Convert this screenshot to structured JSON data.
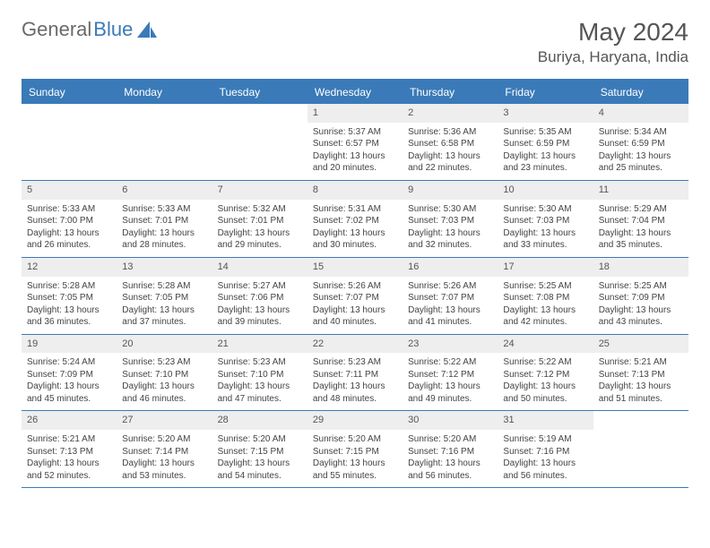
{
  "logo": {
    "text1": "General",
    "text2": "Blue"
  },
  "title": "May 2024",
  "location": "Buriya, Haryana, India",
  "colors": {
    "header_bg": "#3a7ab8",
    "header_text": "#ffffff",
    "daynum_bg": "#eeeeee",
    "text": "#444444",
    "title": "#555555",
    "rule": "#3a7ab8"
  },
  "typography": {
    "title_fontsize": 28,
    "location_fontsize": 17,
    "header_fontsize": 12,
    "cell_fontsize": 10
  },
  "day_names": [
    "Sunday",
    "Monday",
    "Tuesday",
    "Wednesday",
    "Thursday",
    "Friday",
    "Saturday"
  ],
  "weeks": [
    [
      {
        "day": "",
        "sunrise": "",
        "sunset": "",
        "daylight1": "",
        "daylight2": ""
      },
      {
        "day": "",
        "sunrise": "",
        "sunset": "",
        "daylight1": "",
        "daylight2": ""
      },
      {
        "day": "",
        "sunrise": "",
        "sunset": "",
        "daylight1": "",
        "daylight2": ""
      },
      {
        "day": "1",
        "sunrise": "Sunrise: 5:37 AM",
        "sunset": "Sunset: 6:57 PM",
        "daylight1": "Daylight: 13 hours",
        "daylight2": "and 20 minutes."
      },
      {
        "day": "2",
        "sunrise": "Sunrise: 5:36 AM",
        "sunset": "Sunset: 6:58 PM",
        "daylight1": "Daylight: 13 hours",
        "daylight2": "and 22 minutes."
      },
      {
        "day": "3",
        "sunrise": "Sunrise: 5:35 AM",
        "sunset": "Sunset: 6:59 PM",
        "daylight1": "Daylight: 13 hours",
        "daylight2": "and 23 minutes."
      },
      {
        "day": "4",
        "sunrise": "Sunrise: 5:34 AM",
        "sunset": "Sunset: 6:59 PM",
        "daylight1": "Daylight: 13 hours",
        "daylight2": "and 25 minutes."
      }
    ],
    [
      {
        "day": "5",
        "sunrise": "Sunrise: 5:33 AM",
        "sunset": "Sunset: 7:00 PM",
        "daylight1": "Daylight: 13 hours",
        "daylight2": "and 26 minutes."
      },
      {
        "day": "6",
        "sunrise": "Sunrise: 5:33 AM",
        "sunset": "Sunset: 7:01 PM",
        "daylight1": "Daylight: 13 hours",
        "daylight2": "and 28 minutes."
      },
      {
        "day": "7",
        "sunrise": "Sunrise: 5:32 AM",
        "sunset": "Sunset: 7:01 PM",
        "daylight1": "Daylight: 13 hours",
        "daylight2": "and 29 minutes."
      },
      {
        "day": "8",
        "sunrise": "Sunrise: 5:31 AM",
        "sunset": "Sunset: 7:02 PM",
        "daylight1": "Daylight: 13 hours",
        "daylight2": "and 30 minutes."
      },
      {
        "day": "9",
        "sunrise": "Sunrise: 5:30 AM",
        "sunset": "Sunset: 7:03 PM",
        "daylight1": "Daylight: 13 hours",
        "daylight2": "and 32 minutes."
      },
      {
        "day": "10",
        "sunrise": "Sunrise: 5:30 AM",
        "sunset": "Sunset: 7:03 PM",
        "daylight1": "Daylight: 13 hours",
        "daylight2": "and 33 minutes."
      },
      {
        "day": "11",
        "sunrise": "Sunrise: 5:29 AM",
        "sunset": "Sunset: 7:04 PM",
        "daylight1": "Daylight: 13 hours",
        "daylight2": "and 35 minutes."
      }
    ],
    [
      {
        "day": "12",
        "sunrise": "Sunrise: 5:28 AM",
        "sunset": "Sunset: 7:05 PM",
        "daylight1": "Daylight: 13 hours",
        "daylight2": "and 36 minutes."
      },
      {
        "day": "13",
        "sunrise": "Sunrise: 5:28 AM",
        "sunset": "Sunset: 7:05 PM",
        "daylight1": "Daylight: 13 hours",
        "daylight2": "and 37 minutes."
      },
      {
        "day": "14",
        "sunrise": "Sunrise: 5:27 AM",
        "sunset": "Sunset: 7:06 PM",
        "daylight1": "Daylight: 13 hours",
        "daylight2": "and 39 minutes."
      },
      {
        "day": "15",
        "sunrise": "Sunrise: 5:26 AM",
        "sunset": "Sunset: 7:07 PM",
        "daylight1": "Daylight: 13 hours",
        "daylight2": "and 40 minutes."
      },
      {
        "day": "16",
        "sunrise": "Sunrise: 5:26 AM",
        "sunset": "Sunset: 7:07 PM",
        "daylight1": "Daylight: 13 hours",
        "daylight2": "and 41 minutes."
      },
      {
        "day": "17",
        "sunrise": "Sunrise: 5:25 AM",
        "sunset": "Sunset: 7:08 PM",
        "daylight1": "Daylight: 13 hours",
        "daylight2": "and 42 minutes."
      },
      {
        "day": "18",
        "sunrise": "Sunrise: 5:25 AM",
        "sunset": "Sunset: 7:09 PM",
        "daylight1": "Daylight: 13 hours",
        "daylight2": "and 43 minutes."
      }
    ],
    [
      {
        "day": "19",
        "sunrise": "Sunrise: 5:24 AM",
        "sunset": "Sunset: 7:09 PM",
        "daylight1": "Daylight: 13 hours",
        "daylight2": "and 45 minutes."
      },
      {
        "day": "20",
        "sunrise": "Sunrise: 5:23 AM",
        "sunset": "Sunset: 7:10 PM",
        "daylight1": "Daylight: 13 hours",
        "daylight2": "and 46 minutes."
      },
      {
        "day": "21",
        "sunrise": "Sunrise: 5:23 AM",
        "sunset": "Sunset: 7:10 PM",
        "daylight1": "Daylight: 13 hours",
        "daylight2": "and 47 minutes."
      },
      {
        "day": "22",
        "sunrise": "Sunrise: 5:23 AM",
        "sunset": "Sunset: 7:11 PM",
        "daylight1": "Daylight: 13 hours",
        "daylight2": "and 48 minutes."
      },
      {
        "day": "23",
        "sunrise": "Sunrise: 5:22 AM",
        "sunset": "Sunset: 7:12 PM",
        "daylight1": "Daylight: 13 hours",
        "daylight2": "and 49 minutes."
      },
      {
        "day": "24",
        "sunrise": "Sunrise: 5:22 AM",
        "sunset": "Sunset: 7:12 PM",
        "daylight1": "Daylight: 13 hours",
        "daylight2": "and 50 minutes."
      },
      {
        "day": "25",
        "sunrise": "Sunrise: 5:21 AM",
        "sunset": "Sunset: 7:13 PM",
        "daylight1": "Daylight: 13 hours",
        "daylight2": "and 51 minutes."
      }
    ],
    [
      {
        "day": "26",
        "sunrise": "Sunrise: 5:21 AM",
        "sunset": "Sunset: 7:13 PM",
        "daylight1": "Daylight: 13 hours",
        "daylight2": "and 52 minutes."
      },
      {
        "day": "27",
        "sunrise": "Sunrise: 5:20 AM",
        "sunset": "Sunset: 7:14 PM",
        "daylight1": "Daylight: 13 hours",
        "daylight2": "and 53 minutes."
      },
      {
        "day": "28",
        "sunrise": "Sunrise: 5:20 AM",
        "sunset": "Sunset: 7:15 PM",
        "daylight1": "Daylight: 13 hours",
        "daylight2": "and 54 minutes."
      },
      {
        "day": "29",
        "sunrise": "Sunrise: 5:20 AM",
        "sunset": "Sunset: 7:15 PM",
        "daylight1": "Daylight: 13 hours",
        "daylight2": "and 55 minutes."
      },
      {
        "day": "30",
        "sunrise": "Sunrise: 5:20 AM",
        "sunset": "Sunset: 7:16 PM",
        "daylight1": "Daylight: 13 hours",
        "daylight2": "and 56 minutes."
      },
      {
        "day": "31",
        "sunrise": "Sunrise: 5:19 AM",
        "sunset": "Sunset: 7:16 PM",
        "daylight1": "Daylight: 13 hours",
        "daylight2": "and 56 minutes."
      },
      {
        "day": "",
        "sunrise": "",
        "sunset": "",
        "daylight1": "",
        "daylight2": ""
      }
    ]
  ]
}
